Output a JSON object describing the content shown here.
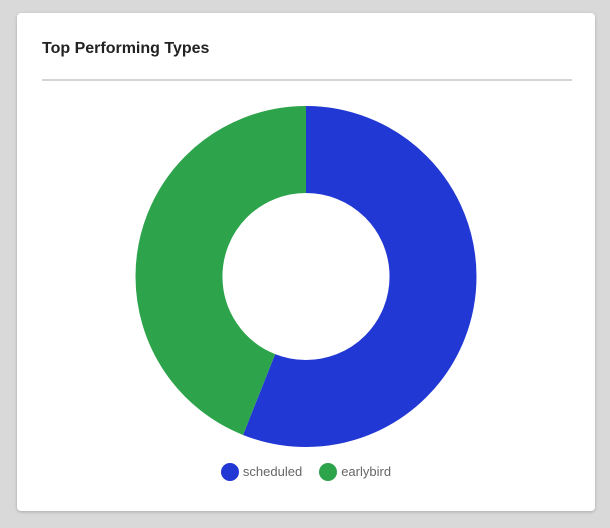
{
  "page": {
    "background_color": "#d9d9d9"
  },
  "card": {
    "title": "Top Performing Types",
    "background_color": "#ffffff",
    "divider_color": "#d4d4d4",
    "title_text_color": "#222222"
  },
  "chart_data": {
    "type": "pie",
    "subtype": "doughnut",
    "title": "Top Performing Types",
    "labels": [
      "scheduled",
      "earlybird"
    ],
    "values": [
      56,
      44
    ],
    "value_unit": "percent of ring, estimated from arc angles",
    "colors": [
      "#2238d4",
      "#2da44b"
    ],
    "start_angle_deg": 0,
    "direction": "clockwise",
    "cutout_ratio": 0.49,
    "legend_position": "bottom",
    "legend_text_color": "#666666"
  },
  "legend": {
    "items": [
      {
        "label": "scheduled",
        "color": "#2238d4"
      },
      {
        "label": "earlybird",
        "color": "#2da44b"
      }
    ]
  }
}
